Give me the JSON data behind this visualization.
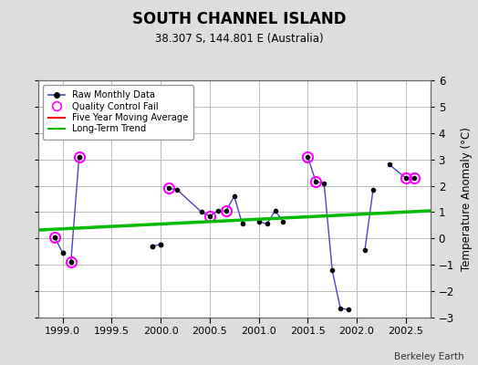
{
  "title": "SOUTH CHANNEL ISLAND",
  "subtitle": "38.307 S, 144.801 E (Australia)",
  "attribution": "Berkeley Earth",
  "xlim": [
    1998.75,
    2002.75
  ],
  "ylim": [
    -3,
    6
  ],
  "xticks": [
    1999,
    1999.5,
    2000,
    2000.5,
    2001,
    2001.5,
    2002,
    2002.5
  ],
  "yticks": [
    -3,
    -2,
    -1,
    0,
    1,
    2,
    3,
    4,
    5,
    6
  ],
  "segments": [
    {
      "x": [
        1998.917,
        1999.0
      ],
      "y": [
        0.05,
        -0.55
      ]
    },
    {
      "x": [
        1999.083,
        1999.167
      ],
      "y": [
        -0.9,
        3.1
      ]
    },
    {
      "x": [
        1999.917,
        2000.0
      ],
      "y": [
        -0.3,
        -0.22
      ]
    },
    {
      "x": [
        2000.083,
        2000.167,
        2000.417,
        2000.5,
        2000.583,
        2000.667,
        2000.75,
        2000.833
      ],
      "y": [
        1.9,
        1.85,
        1.0,
        0.85,
        1.05,
        1.05,
        1.6,
        0.55
      ]
    },
    {
      "x": [
        2001.0,
        2001.083,
        2001.167,
        2001.25
      ],
      "y": [
        0.65,
        0.55,
        1.05,
        0.65
      ]
    },
    {
      "x": [
        2001.5,
        2001.583,
        2001.667,
        2001.75,
        2001.833,
        2001.917
      ],
      "y": [
        3.1,
        2.15,
        2.1,
        -1.2,
        -2.65,
        -2.7
      ]
    },
    {
      "x": [
        2002.083,
        2002.167
      ],
      "y": [
        -0.45,
        1.85
      ]
    },
    {
      "x": [
        2002.333,
        2002.5,
        2002.583
      ],
      "y": [
        2.8,
        2.3,
        2.3
      ]
    }
  ],
  "isolated_points": [
    {
      "x": [
        1998.917
      ],
      "y": [
        0.05
      ]
    },
    {
      "x": [
        1999.0
      ],
      "y": [
        -0.55
      ]
    },
    {
      "x": [
        1999.083
      ],
      "y": [
        -0.9
      ]
    },
    {
      "x": [
        1999.167
      ],
      "y": [
        3.1
      ]
    },
    {
      "x": [
        1999.917
      ],
      "y": [
        -0.3
      ]
    },
    {
      "x": [
        2000.0
      ],
      "y": [
        -0.22
      ]
    }
  ],
  "qc_fail_x": [
    1998.917,
    1999.083,
    1999.167,
    2000.083,
    2000.5,
    2000.667,
    2001.5,
    2001.583,
    2002.5,
    2002.583
  ],
  "qc_fail_y": [
    0.05,
    -0.9,
    3.1,
    1.9,
    0.85,
    1.05,
    3.1,
    2.15,
    2.3,
    2.3
  ],
  "trend_x": [
    1998.75,
    2002.75
  ],
  "trend_y": [
    0.32,
    1.05
  ],
  "bg_color": "#dddddd",
  "plot_bg_color": "#ffffff",
  "raw_line_color": "#4444cc",
  "raw_marker_color": "#000000",
  "qc_marker_color": "#ff00ff",
  "trend_color": "#00bb00",
  "mavg_color": "#ff0000",
  "grid_color": "#bbbbbb"
}
